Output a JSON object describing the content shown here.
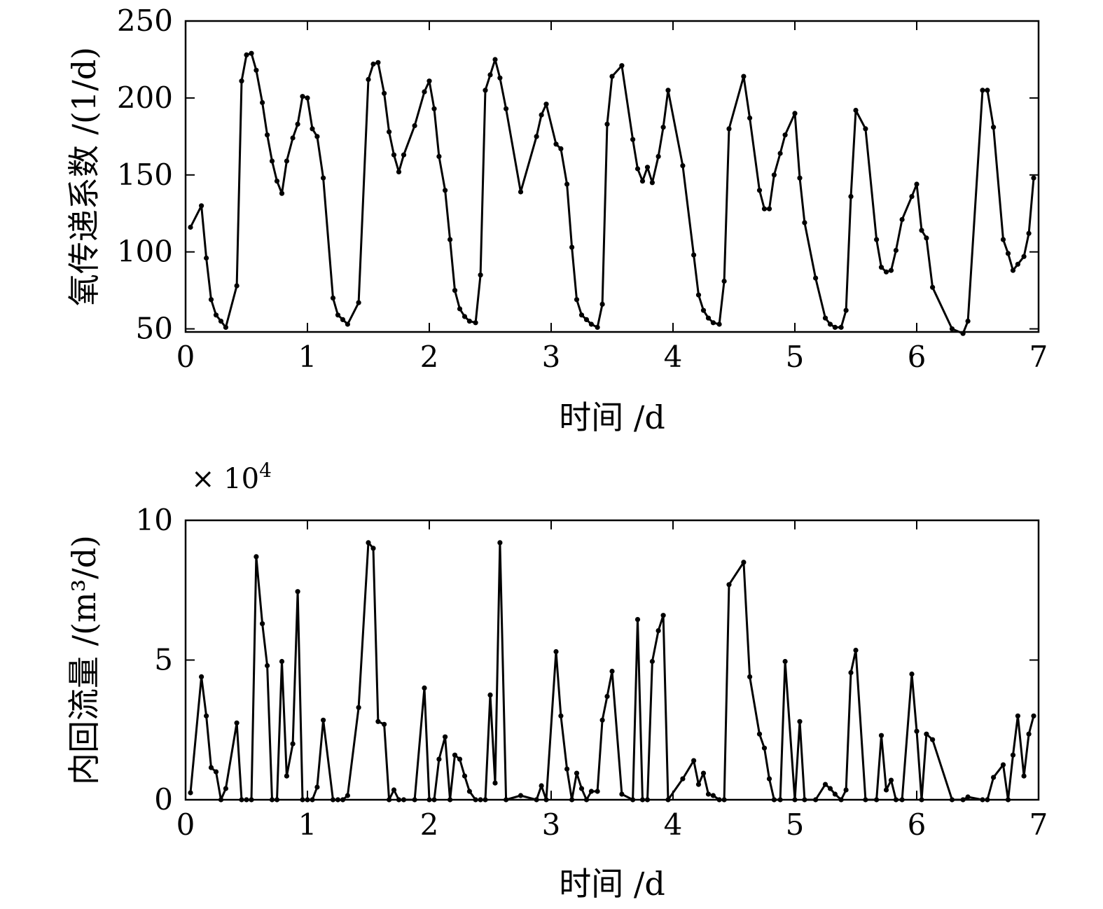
{
  "chart_data": [
    {
      "type": "line",
      "xlabel": "时间 /d",
      "ylabel": "氧传递系数 /(1/d)",
      "xlim": [
        0,
        7
      ],
      "ylim": [
        48,
        250
      ],
      "xticks": [
        0,
        1,
        2,
        3,
        4,
        5,
        6,
        7
      ],
      "yticks": [
        50,
        100,
        150,
        200,
        250
      ],
      "x_tick_labels": [
        "0",
        "1",
        "2",
        "3",
        "4",
        "5",
        "6",
        "7"
      ],
      "y_tick_labels": [
        "50",
        "100",
        "150",
        "200",
        "250"
      ],
      "grid": false,
      "series": [
        {
          "color": "#000000",
          "x": [
            0.04,
            0.13,
            0.17,
            0.21,
            0.25,
            0.29,
            0.33,
            0.42,
            0.46,
            0.5,
            0.54,
            0.58,
            0.63,
            0.67,
            0.71,
            0.75,
            0.79,
            0.83,
            0.88,
            0.92,
            0.96,
            1.0,
            1.04,
            1.08,
            1.13,
            1.21,
            1.25,
            1.29,
            1.33,
            1.42,
            1.5,
            1.54,
            1.58,
            1.63,
            1.67,
            1.71,
            1.75,
            1.79,
            1.88,
            1.96,
            2.0,
            2.04,
            2.08,
            2.13,
            2.17,
            2.21,
            2.25,
            2.29,
            2.33,
            2.38,
            2.42,
            2.46,
            2.5,
            2.54,
            2.58,
            2.63,
            2.75,
            2.88,
            2.92,
            2.96,
            3.04,
            3.08,
            3.13,
            3.17,
            3.21,
            3.25,
            3.29,
            3.33,
            3.38,
            3.42,
            3.46,
            3.5,
            3.58,
            3.67,
            3.71,
            3.75,
            3.79,
            3.83,
            3.88,
            3.92,
            3.96,
            4.08,
            4.17,
            4.21,
            4.25,
            4.29,
            4.33,
            4.38,
            4.42,
            4.46,
            4.58,
            4.63,
            4.71,
            4.75,
            4.79,
            4.83,
            4.88,
            4.92,
            5.0,
            5.04,
            5.08,
            5.17,
            5.25,
            5.29,
            5.33,
            5.38,
            5.42,
            5.46,
            5.5,
            5.58,
            5.67,
            5.71,
            5.75,
            5.79,
            5.83,
            5.88,
            5.96,
            6.0,
            6.04,
            6.08,
            6.13,
            6.29,
            6.38,
            6.42,
            6.54,
            6.58,
            6.63,
            6.71,
            6.75,
            6.79,
            6.83,
            6.88,
            6.92,
            6.96
          ],
          "values": [
            116,
            130,
            96,
            69,
            59,
            55,
            51,
            78,
            211,
            228,
            229,
            218,
            197,
            176,
            159,
            146,
            138,
            159,
            174,
            183,
            201,
            200,
            180,
            175,
            148,
            70,
            59,
            56,
            53,
            67,
            212,
            222,
            223,
            203,
            178,
            163,
            152,
            163,
            182,
            204,
            211,
            193,
            162,
            140,
            108,
            75,
            63,
            58,
            55,
            54,
            85,
            205,
            215,
            225,
            213,
            193,
            139,
            175,
            189,
            196,
            170,
            167,
            144,
            103,
            69,
            59,
            56,
            53,
            51,
            66,
            183,
            214,
            221,
            173,
            154,
            146,
            155,
            145,
            162,
            181,
            205,
            156,
            98,
            72,
            62,
            57,
            54,
            53,
            81,
            180,
            214,
            187,
            140,
            128,
            128,
            150,
            164,
            176,
            190,
            148,
            119,
            83,
            57,
            53,
            51,
            51,
            62,
            136,
            192,
            180,
            108,
            90,
            87,
            88,
            101,
            121,
            136,
            144,
            114,
            109,
            77,
            50,
            47,
            55,
            205,
            205,
            181,
            108,
            99,
            88,
            92,
            97,
            112,
            148
          ]
        }
      ]
    },
    {
      "type": "line",
      "xlabel": "时间 /d",
      "ylabel": "内回流量 /(m³/d)",
      "exponent_label": "× 10",
      "exponent_power": "4",
      "xlim": [
        0,
        7
      ],
      "ylim": [
        0,
        10
      ],
      "xticks": [
        0,
        1,
        2,
        3,
        4,
        5,
        6,
        7
      ],
      "yticks": [
        0,
        5,
        10
      ],
      "x_tick_labels": [
        "0",
        "1",
        "2",
        "3",
        "4",
        "5",
        "6",
        "7"
      ],
      "y_tick_labels": [
        "0",
        "5",
        "10"
      ],
      "grid": false,
      "series": [
        {
          "color": "#000000",
          "x": [
            0.04,
            0.13,
            0.17,
            0.21,
            0.25,
            0.29,
            0.33,
            0.42,
            0.46,
            0.5,
            0.54,
            0.58,
            0.63,
            0.67,
            0.71,
            0.75,
            0.79,
            0.83,
            0.88,
            0.92,
            0.96,
            1.0,
            1.04,
            1.08,
            1.13,
            1.21,
            1.25,
            1.29,
            1.33,
            1.42,
            1.5,
            1.54,
            1.58,
            1.63,
            1.67,
            1.71,
            1.75,
            1.79,
            1.88,
            1.96,
            2.0,
            2.04,
            2.08,
            2.13,
            2.17,
            2.21,
            2.25,
            2.29,
            2.33,
            2.38,
            2.42,
            2.46,
            2.5,
            2.54,
            2.58,
            2.63,
            2.75,
            2.88,
            2.92,
            2.96,
            3.04,
            3.08,
            3.13,
            3.17,
            3.21,
            3.25,
            3.29,
            3.33,
            3.38,
            3.42,
            3.46,
            3.5,
            3.58,
            3.67,
            3.71,
            3.75,
            3.79,
            3.83,
            3.88,
            3.92,
            3.96,
            4.08,
            4.17,
            4.21,
            4.25,
            4.29,
            4.33,
            4.38,
            4.42,
            4.46,
            4.58,
            4.63,
            4.71,
            4.75,
            4.79,
            4.83,
            4.88,
            4.92,
            5.0,
            5.04,
            5.08,
            5.17,
            5.25,
            5.29,
            5.33,
            5.38,
            5.42,
            5.46,
            5.5,
            5.58,
            5.67,
            5.71,
            5.75,
            5.79,
            5.83,
            5.88,
            5.96,
            6.0,
            6.04,
            6.08,
            6.13,
            6.29,
            6.38,
            6.42,
            6.54,
            6.58,
            6.63,
            6.71,
            6.75,
            6.79,
            6.83,
            6.88,
            6.92,
            6.96
          ],
          "values": [
            0.25,
            4.4,
            3.0,
            1.15,
            1.0,
            0.0,
            0.4,
            2.75,
            0.0,
            0.0,
            0.0,
            8.7,
            6.3,
            4.8,
            0.0,
            0.0,
            4.95,
            0.85,
            2.0,
            7.45,
            0.0,
            0.0,
            0.0,
            0.45,
            2.85,
            0.0,
            0.0,
            0.0,
            0.15,
            3.3,
            9.2,
            9.0,
            2.8,
            2.7,
            0.0,
            0.35,
            0.0,
            0.0,
            0.0,
            4.0,
            0.0,
            0.0,
            1.45,
            2.25,
            0.0,
            1.6,
            1.45,
            0.85,
            0.3,
            0.0,
            0.0,
            0.0,
            3.75,
            0.6,
            9.2,
            0.0,
            0.15,
            0.0,
            0.5,
            0.0,
            5.3,
            3.0,
            1.1,
            0.0,
            0.95,
            0.4,
            0.0,
            0.3,
            0.3,
            2.85,
            3.7,
            4.6,
            0.2,
            0.0,
            6.45,
            0.0,
            0.0,
            4.95,
            6.05,
            6.6,
            0.0,
            0.75,
            1.4,
            0.55,
            0.95,
            0.2,
            0.15,
            0.0,
            0.0,
            7.7,
            8.5,
            4.4,
            2.35,
            1.85,
            0.75,
            0.0,
            0.0,
            4.95,
            0.0,
            2.8,
            0.0,
            0.0,
            0.55,
            0.4,
            0.2,
            0.0,
            0.35,
            4.55,
            5.35,
            0.0,
            0.0,
            2.3,
            0.35,
            0.7,
            0.0,
            0.0,
            4.5,
            2.45,
            0.0,
            2.35,
            2.15,
            0.0,
            0.0,
            0.1,
            0.0,
            0.0,
            0.8,
            1.25,
            0.0,
            1.6,
            3.0,
            0.85,
            2.35,
            3.0
          ]
        }
      ]
    }
  ]
}
